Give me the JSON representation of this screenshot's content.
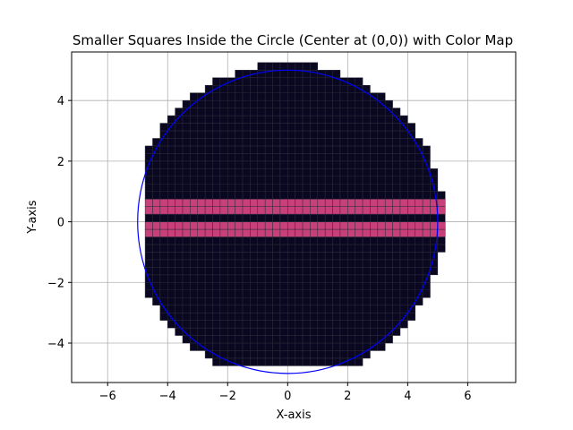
{
  "chart_data": {
    "type": "scatter",
    "title": "Smaller Squares Inside the Circle (Center at (0,0)) with Color Map",
    "xlabel": "X-axis",
    "ylabel": "Y-axis",
    "xlim": [
      -7.2,
      7.6
    ],
    "ylim": [
      -5.3,
      5.6
    ],
    "xticks": [
      -6,
      -4,
      -2,
      0,
      2,
      4,
      6
    ],
    "yticks": [
      -4,
      -2,
      0,
      2,
      4
    ],
    "xtick_labels": [
      "−6",
      "−4",
      "−2",
      "0",
      "2",
      "4",
      "6"
    ],
    "ytick_labels": [
      "−4",
      "−2",
      "0",
      "2",
      "4"
    ],
    "grid": true,
    "circle": {
      "center": [
        0,
        0
      ],
      "radius": 5,
      "color": "#0000ff"
    },
    "squares": {
      "size": 0.25,
      "x_start": -4.75,
      "x_end": 5.25,
      "y_start": -4.75,
      "y_end": 5.25,
      "inclusion_radius": 5.2,
      "colors": {
        "base": "#0a0820",
        "highlight": "#c8407a",
        "edge": "#2b2b3a"
      },
      "highlight_y_ranges": [
        [
          0.25,
          0.75
        ],
        [
          -0.5,
          0
        ]
      ]
    }
  }
}
